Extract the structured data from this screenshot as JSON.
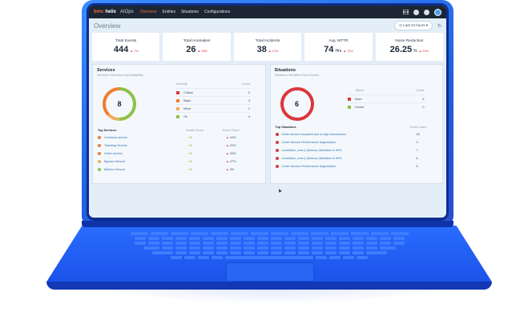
{
  "app": {
    "brand_prefix": "bmc",
    "brand_suffix": "helix",
    "product": "AIOps",
    "nav": [
      "Overview",
      "Entities",
      "Situations",
      "Configurations"
    ],
    "active_nav": "Overview"
  },
  "page": {
    "title": "Overview",
    "time_range": "Last 24 hours ▾",
    "refresh_icon": "refresh-icon"
  },
  "kpis": [
    {
      "label": "Total Events",
      "value": "444",
      "unit": "",
      "delta": "▲ 7%"
    },
    {
      "label": "Total Anomalies",
      "value": "26",
      "unit": "",
      "delta": "▲ 33%"
    },
    {
      "label": "Total Incidents",
      "value": "38",
      "unit": "",
      "delta": "▲ 10%"
    },
    {
      "label": "Avg. MTTR",
      "value": "74",
      "unit": "Hrs",
      "delta": "▲ 73%"
    },
    {
      "label": "Noise Reduction",
      "value": "26.25",
      "unit": "%",
      "delta": "▲ 20%"
    }
  ],
  "services": {
    "title": "Services",
    "subtitle": "Services Overview and Availability",
    "donut_total": "8",
    "severity_header": "Severity",
    "count_header": "Count",
    "severity": [
      {
        "label": "Critical",
        "count": "0",
        "color": "#d9373c"
      },
      {
        "label": "Major",
        "count": "3",
        "color": "#f07d2e"
      },
      {
        "label": "Minor",
        "count": "1",
        "color": "#f2ac5a"
      },
      {
        "label": "Ok",
        "count": "4",
        "color": "#8fc146"
      }
    ],
    "top_title": "Top Services",
    "health_header": "Health Score",
    "trend_header": "Event Trend",
    "top": [
      {
        "name": "Livestock service",
        "health": "50",
        "trend": "44%",
        "color": "#f07d2e"
      },
      {
        "name": "Ticketing Service",
        "health": "50",
        "trend": "22%",
        "color": "#f07d2e"
      },
      {
        "name": "Order service",
        "health": "50",
        "trend": "33%",
        "color": "#f07d2e"
      },
      {
        "name": "Bypass Service",
        "health": "50",
        "trend": "27%",
        "color": "#f2ac5a"
      },
      {
        "name": "Metrics Service",
        "health": "50",
        "trend": "3%",
        "color": "#8fc146"
      }
    ]
  },
  "situations": {
    "title": "Situations",
    "subtitle": "Situations Identified From Events",
    "donut_total": "6",
    "status_header": "Status",
    "count_header": "Count",
    "status": [
      {
        "label": "Open",
        "count": "6",
        "color": "#d9373c"
      },
      {
        "label": "Closed",
        "count": "0",
        "color": "#8fc146"
      }
    ],
    "top_title": "Top Situations",
    "event_header": "Event Count",
    "top": [
      {
        "name": "Order service impacted due to high transactions",
        "count": "16"
      },
      {
        "name": "Order Service Performance degradation",
        "count": "9"
      },
      {
        "name": "correlation_event_Memory Utilization is 99%",
        "count": "7"
      },
      {
        "name": "correlation_event_Memory Utilization is 99%",
        "count": "6"
      },
      {
        "name": "Order Service Performance degradation",
        "count": "5"
      }
    ]
  }
}
